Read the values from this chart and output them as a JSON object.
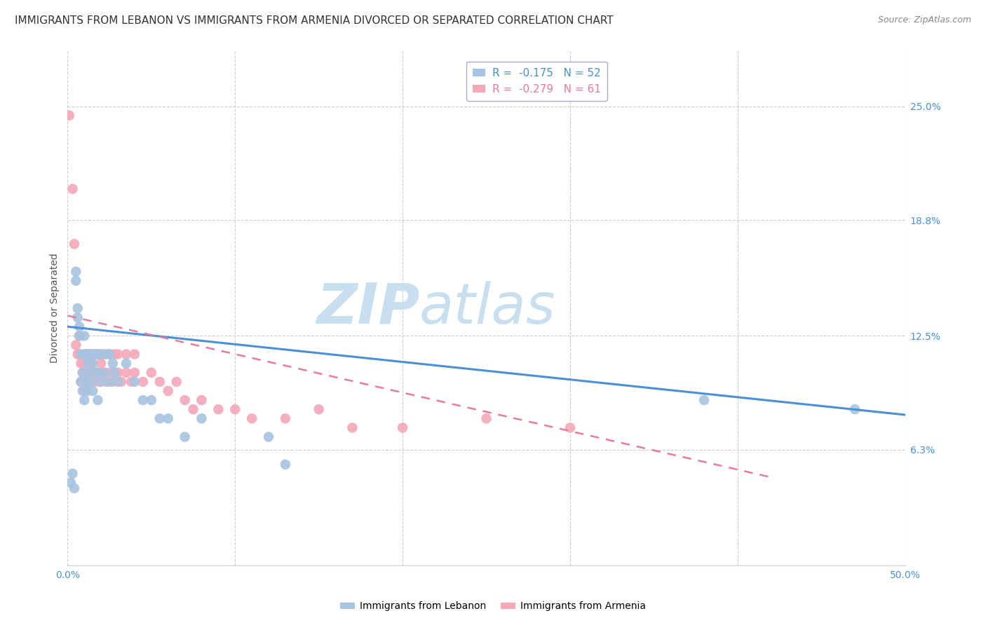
{
  "title": "IMMIGRANTS FROM LEBANON VS IMMIGRANTS FROM ARMENIA DIVORCED OR SEPARATED CORRELATION CHART",
  "source": "Source: ZipAtlas.com",
  "ylabel": "Divorced or Separated",
  "xlim": [
    0,
    0.5
  ],
  "ylim": [
    0,
    0.28
  ],
  "xtick_values": [
    0.0,
    0.1,
    0.2,
    0.3,
    0.4,
    0.5
  ],
  "xtick_labels": [
    "0.0%",
    "",
    "",
    "",
    "",
    "50.0%"
  ],
  "ytick_labels_right": [
    "6.3%",
    "12.5%",
    "18.8%",
    "25.0%"
  ],
  "ytick_values_right": [
    0.063,
    0.125,
    0.188,
    0.25
  ],
  "grid_color": "#cccccc",
  "background_color": "#ffffff",
  "lebanon_color": "#a8c4e0",
  "armenia_color": "#f4a8b8",
  "lebanon_line_color": "#4a90d9",
  "armenia_line_color": "#e87a9a",
  "lebanon_R": -0.175,
  "lebanon_N": 52,
  "armenia_R": -0.279,
  "armenia_N": 61,
  "lebanon_scatter_x": [
    0.002,
    0.003,
    0.004,
    0.005,
    0.005,
    0.006,
    0.006,
    0.007,
    0.007,
    0.008,
    0.008,
    0.009,
    0.009,
    0.01,
    0.01,
    0.01,
    0.011,
    0.011,
    0.012,
    0.012,
    0.013,
    0.013,
    0.014,
    0.014,
    0.015,
    0.015,
    0.016,
    0.017,
    0.018,
    0.018,
    0.019,
    0.02,
    0.02,
    0.022,
    0.023,
    0.025,
    0.025,
    0.027,
    0.028,
    0.03,
    0.035,
    0.04,
    0.045,
    0.05,
    0.055,
    0.06,
    0.07,
    0.08,
    0.12,
    0.13,
    0.38,
    0.47
  ],
  "lebanon_scatter_y": [
    0.045,
    0.05,
    0.042,
    0.155,
    0.16,
    0.14,
    0.135,
    0.125,
    0.13,
    0.1,
    0.115,
    0.095,
    0.105,
    0.09,
    0.115,
    0.125,
    0.1,
    0.115,
    0.095,
    0.11,
    0.105,
    0.115,
    0.1,
    0.115,
    0.095,
    0.11,
    0.115,
    0.105,
    0.09,
    0.105,
    0.115,
    0.1,
    0.115,
    0.105,
    0.115,
    0.1,
    0.115,
    0.11,
    0.105,
    0.1,
    0.11,
    0.1,
    0.09,
    0.09,
    0.08,
    0.08,
    0.07,
    0.08,
    0.07,
    0.055,
    0.09,
    0.085
  ],
  "armenia_scatter_x": [
    0.001,
    0.003,
    0.004,
    0.005,
    0.006,
    0.007,
    0.007,
    0.008,
    0.008,
    0.009,
    0.009,
    0.01,
    0.01,
    0.011,
    0.011,
    0.012,
    0.012,
    0.013,
    0.013,
    0.014,
    0.015,
    0.015,
    0.016,
    0.017,
    0.018,
    0.018,
    0.019,
    0.02,
    0.02,
    0.021,
    0.022,
    0.023,
    0.025,
    0.025,
    0.027,
    0.028,
    0.03,
    0.03,
    0.032,
    0.035,
    0.035,
    0.038,
    0.04,
    0.04,
    0.045,
    0.05,
    0.055,
    0.06,
    0.065,
    0.07,
    0.075,
    0.08,
    0.09,
    0.1,
    0.11,
    0.13,
    0.15,
    0.17,
    0.2,
    0.25,
    0.3
  ],
  "armenia_scatter_y": [
    0.245,
    0.205,
    0.175,
    0.12,
    0.115,
    0.115,
    0.125,
    0.1,
    0.11,
    0.1,
    0.105,
    0.095,
    0.11,
    0.1,
    0.115,
    0.105,
    0.115,
    0.1,
    0.115,
    0.11,
    0.105,
    0.115,
    0.1,
    0.115,
    0.105,
    0.115,
    0.1,
    0.115,
    0.11,
    0.105,
    0.115,
    0.1,
    0.105,
    0.115,
    0.1,
    0.115,
    0.105,
    0.115,
    0.1,
    0.105,
    0.115,
    0.1,
    0.105,
    0.115,
    0.1,
    0.105,
    0.1,
    0.095,
    0.1,
    0.09,
    0.085,
    0.09,
    0.085,
    0.085,
    0.08,
    0.08,
    0.085,
    0.075,
    0.075,
    0.08,
    0.075
  ],
  "watermark_zip": "ZIP",
  "watermark_atlas": "atlas",
  "watermark_color_zip": "#c8dff0",
  "watermark_color_atlas": "#c8dff0",
  "title_fontsize": 11,
  "axis_label_fontsize": 10,
  "legend_fontsize": 11,
  "tick_fontsize": 10
}
